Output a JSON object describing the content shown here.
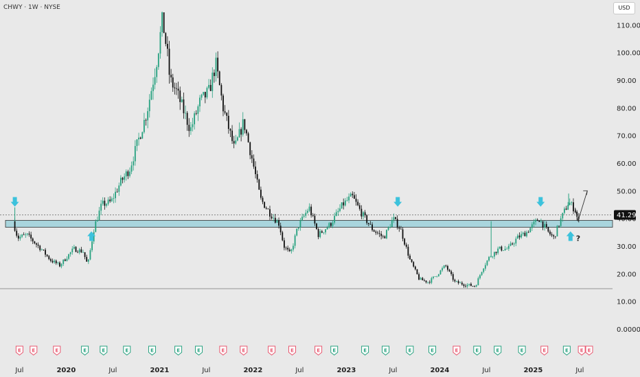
{
  "header": {
    "title": "CHWY · 1W · NYSE",
    "currency_button": "USD"
  },
  "colors": {
    "background": "#e9e9e9",
    "up": "#26a17f",
    "down": "#111111",
    "zone_fill": "#a9d5dd",
    "arrow": "#3cc2dc",
    "earn_red": "#e8566e",
    "earn_green": "#26a17f"
  },
  "current_price": "41.29",
  "question_mark": "?",
  "chart_data": {
    "type": "candlestick",
    "timeframe": "1W",
    "ticker": "CHWY",
    "exchange": "NYSE",
    "currency": "USD",
    "ylim": [
      0,
      118
    ],
    "y_ticks": [
      "0.0000",
      "10.00",
      "20.00",
      "30.00",
      "40.00",
      "50.00",
      "60.00",
      "70.00",
      "80.00",
      "90.00",
      "100.00",
      "110.00"
    ],
    "x_ticks": [
      {
        "label": "Jul",
        "t": 2019.5,
        "year": false
      },
      {
        "label": "2020",
        "t": 2020.0,
        "year": true
      },
      {
        "label": "Jul",
        "t": 2020.5,
        "year": false
      },
      {
        "label": "2021",
        "t": 2021.0,
        "year": true
      },
      {
        "label": "Jul",
        "t": 2021.5,
        "year": false
      },
      {
        "label": "2022",
        "t": 2022.0,
        "year": true
      },
      {
        "label": "Jul",
        "t": 2022.5,
        "year": false
      },
      {
        "label": "2023",
        "t": 2023.0,
        "year": true
      },
      {
        "label": "Jul",
        "t": 2023.5,
        "year": false
      },
      {
        "label": "2024",
        "t": 2024.0,
        "year": true
      },
      {
        "label": "Jul",
        "t": 2024.5,
        "year": false
      },
      {
        "label": "2025",
        "t": 2025.0,
        "year": true
      },
      {
        "label": "Jul",
        "t": 2025.5,
        "year": false
      }
    ],
    "price_path": [
      [
        2019.45,
        39
      ],
      [
        2019.5,
        33
      ],
      [
        2019.6,
        34
      ],
      [
        2019.75,
        29
      ],
      [
        2019.85,
        25
      ],
      [
        2019.95,
        23
      ],
      [
        2020.1,
        29
      ],
      [
        2020.2,
        28
      ],
      [
        2020.25,
        23
      ],
      [
        2020.32,
        37
      ],
      [
        2020.4,
        45
      ],
      [
        2020.5,
        46
      ],
      [
        2020.6,
        53
      ],
      [
        2020.7,
        58
      ],
      [
        2020.78,
        67
      ],
      [
        2020.88,
        78
      ],
      [
        2020.98,
        95
      ],
      [
        2021.05,
        112
      ],
      [
        2021.1,
        100
      ],
      [
        2021.13,
        90
      ],
      [
        2021.2,
        86
      ],
      [
        2021.35,
        72
      ],
      [
        2021.45,
        82
      ],
      [
        2021.55,
        86
      ],
      [
        2021.62,
        96
      ],
      [
        2021.7,
        80
      ],
      [
        2021.82,
        65
      ],
      [
        2021.92,
        75
      ],
      [
        2022.0,
        63
      ],
      [
        2022.1,
        47
      ],
      [
        2022.2,
        42
      ],
      [
        2022.3,
        38
      ],
      [
        2022.35,
        30
      ],
      [
        2022.42,
        27
      ],
      [
        2022.5,
        37
      ],
      [
        2022.62,
        44
      ],
      [
        2022.72,
        34
      ],
      [
        2022.85,
        38
      ],
      [
        2022.98,
        45
      ],
      [
        2023.08,
        48
      ],
      [
        2023.18,
        42
      ],
      [
        2023.3,
        36
      ],
      [
        2023.42,
        33
      ],
      [
        2023.52,
        40
      ],
      [
        2023.6,
        36
      ],
      [
        2023.7,
        25
      ],
      [
        2023.8,
        18
      ],
      [
        2023.9,
        17
      ],
      [
        2024.0,
        20
      ],
      [
        2024.08,
        23
      ],
      [
        2024.18,
        17
      ],
      [
        2024.3,
        16
      ],
      [
        2024.4,
        15.5
      ],
      [
        2024.48,
        22
      ],
      [
        2024.55,
        26
      ],
      [
        2024.65,
        29
      ],
      [
        2024.75,
        29
      ],
      [
        2024.85,
        33
      ],
      [
        2024.95,
        35
      ],
      [
        2025.08,
        40
      ],
      [
        2025.18,
        35
      ],
      [
        2025.24,
        33
      ],
      [
        2025.32,
        40
      ],
      [
        2025.4,
        46
      ],
      [
        2025.47,
        43
      ],
      [
        2025.5,
        39
      ]
    ],
    "wick_spikes": [
      [
        2019.45,
        44
      ],
      [
        2024.55,
        39
      ],
      [
        2025.38,
        49
      ]
    ],
    "support_zone": {
      "low": 36.8,
      "high": 39.3
    },
    "horizontal_lines": [
      {
        "y": 41.29,
        "style": "dotted"
      },
      {
        "y": 14.6,
        "style": "solid"
      }
    ],
    "projection": [
      [
        2025.48,
        39
      ],
      [
        2025.58,
        50
      ]
    ],
    "down_arrows": [
      2019.45,
      2023.55,
      2025.08
    ],
    "up_arrows": [
      2020.27,
      2025.4
    ],
    "earnings": [
      {
        "t": 2019.5,
        "label": "E",
        "kind": "red"
      },
      {
        "t": 2019.65,
        "label": "E",
        "kind": "red"
      },
      {
        "t": 2019.9,
        "label": "E",
        "kind": "red"
      },
      {
        "t": 2020.2,
        "label": "E",
        "kind": "green"
      },
      {
        "t": 2020.4,
        "label": "E",
        "kind": "green"
      },
      {
        "t": 2020.65,
        "label": "E",
        "kind": "green"
      },
      {
        "t": 2020.92,
        "label": "E",
        "kind": "green"
      },
      {
        "t": 2021.2,
        "label": "E",
        "kind": "green"
      },
      {
        "t": 2021.42,
        "label": "E",
        "kind": "green"
      },
      {
        "t": 2021.68,
        "label": "E",
        "kind": "red"
      },
      {
        "t": 2021.9,
        "label": "E",
        "kind": "red"
      },
      {
        "t": 2022.2,
        "label": "E",
        "kind": "red"
      },
      {
        "t": 2022.42,
        "label": "E",
        "kind": "red"
      },
      {
        "t": 2022.7,
        "label": "E",
        "kind": "red"
      },
      {
        "t": 2022.87,
        "label": "E",
        "kind": "green"
      },
      {
        "t": 2023.2,
        "label": "E",
        "kind": "green"
      },
      {
        "t": 2023.42,
        "label": "E",
        "kind": "green"
      },
      {
        "t": 2023.68,
        "label": "E",
        "kind": "green"
      },
      {
        "t": 2023.92,
        "label": "E",
        "kind": "green"
      },
      {
        "t": 2024.18,
        "label": "E",
        "kind": "red"
      },
      {
        "t": 2024.4,
        "label": "E",
        "kind": "green"
      },
      {
        "t": 2024.62,
        "label": "E",
        "kind": "green"
      },
      {
        "t": 2024.88,
        "label": "E",
        "kind": "green"
      },
      {
        "t": 2025.12,
        "label": "E",
        "kind": "red"
      },
      {
        "t": 2025.36,
        "label": "E",
        "kind": "green"
      },
      {
        "t": 2025.52,
        "label": "E",
        "kind": "red"
      },
      {
        "t": 2025.6,
        "label": "E",
        "kind": "red"
      }
    ]
  }
}
